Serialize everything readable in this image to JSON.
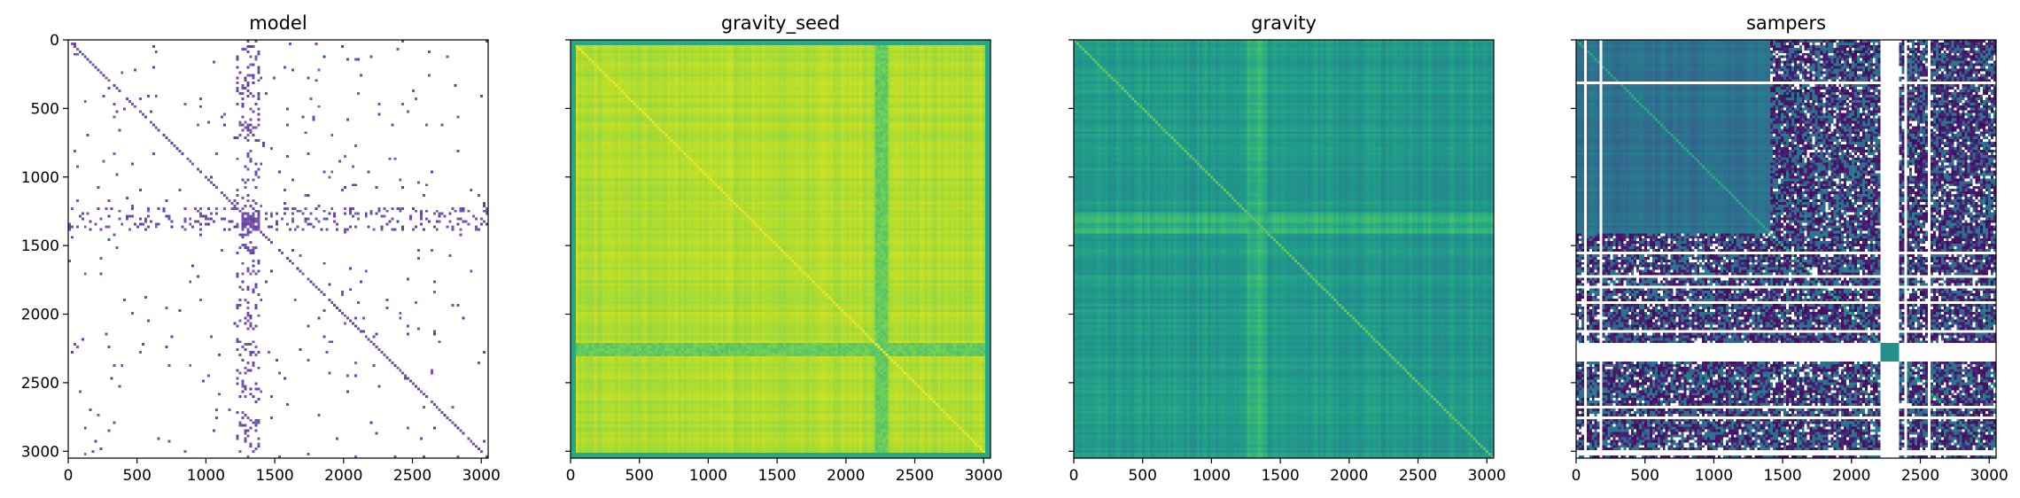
{
  "chart_data": [
    {
      "type": "heatmap",
      "title": "model",
      "colormap": "sparse-purple",
      "background": "#ffffff",
      "xlim": [
        0,
        3050
      ],
      "ylim": [
        3050,
        0
      ],
      "xticks": [
        0,
        500,
        1000,
        1500,
        2000,
        2500,
        3000
      ],
      "yticks": [
        0,
        500,
        1000,
        1500,
        2000,
        2500,
        3000
      ],
      "show_y_tick_labels": true,
      "dense_blocks": [
        [
          1240,
          1390,
          1240,
          1390
        ]
      ],
      "bands": [
        [
          1220,
          1390
        ]
      ]
    },
    {
      "type": "heatmap",
      "title": "gravity_seed",
      "colormap": "viridis-high",
      "xlim": [
        0,
        3050
      ],
      "ylim": [
        3050,
        0
      ],
      "xticks": [
        0,
        500,
        1000,
        1500,
        2000,
        2500,
        3000
      ],
      "yticks": [
        0,
        500,
        1000,
        1500,
        2000,
        2500,
        3000
      ],
      "show_y_tick_labels": false,
      "lower_blocks": [
        [
          2200,
          2300
        ]
      ]
    },
    {
      "type": "heatmap",
      "title": "gravity",
      "colormap": "viridis-mid",
      "xlim": [
        0,
        3050
      ],
      "ylim": [
        3050,
        0
      ],
      "xticks": [
        0,
        500,
        1000,
        1500,
        2000,
        2500,
        3000
      ],
      "yticks": [
        0,
        500,
        1000,
        1500,
        2000,
        2500,
        3000
      ],
      "show_y_tick_labels": false,
      "higher_bands": [
        [
          1250,
          1400
        ]
      ]
    },
    {
      "type": "heatmap",
      "title": "sampers",
      "colormap": "viridis-low",
      "xlim": [
        0,
        3050
      ],
      "ylim": [
        3050,
        0
      ],
      "xticks": [
        0,
        500,
        1000,
        1500,
        2000,
        2500,
        3000
      ],
      "yticks": [
        0,
        500,
        1000,
        1500,
        2000,
        2500,
        3000
      ],
      "show_y_tick_labels": false,
      "gap_range": [
        2200,
        2330
      ],
      "dark_regions": [
        [
          1400,
          2200
        ],
        [
          2330,
          3050
        ]
      ]
    }
  ]
}
